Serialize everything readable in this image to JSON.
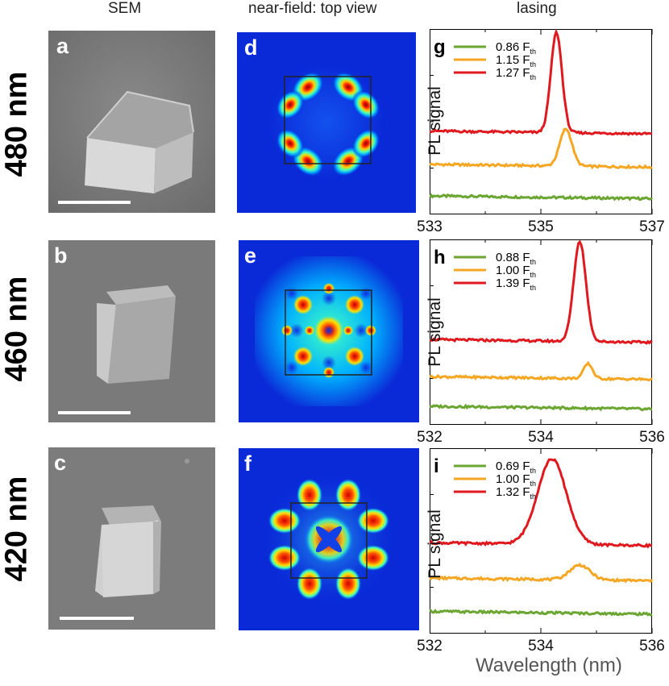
{
  "headers": {
    "sem": "SEM",
    "nearfield": "near-field: top view",
    "lasing": "lasing"
  },
  "rows": [
    {
      "size": "480 nm",
      "sem_label": "a",
      "nf_label": "d",
      "nf_pattern": "lobes8"
    },
    {
      "size": "460 nm",
      "sem_label": "b",
      "nf_label": "e",
      "nf_pattern": "grid"
    },
    {
      "size": "420 nm",
      "sem_label": "c",
      "nf_label": "f",
      "nf_pattern": "edges"
    }
  ],
  "chart_data": [
    {
      "type": "line",
      "panel_label": "g",
      "ylabel": "PL signal",
      "xlabel": "",
      "xlim": [
        533,
        537
      ],
      "xticks": [
        "533",
        "535",
        "537"
      ],
      "xminor": [
        534,
        536
      ],
      "legend_position": "top-left",
      "series": [
        {
          "name": "0.86 F",
          "sub": "th",
          "color": "#6aa631",
          "baseline": 0.1,
          "peak_x": 535.4,
          "peak_height": 0.0,
          "width": 0.1
        },
        {
          "name": "1.15 F",
          "sub": "th",
          "color": "#f5a623",
          "baseline": 0.27,
          "peak_x": 535.45,
          "peak_height": 0.2,
          "width": 0.11
        },
        {
          "name": "1.27 F",
          "sub": "th",
          "color": "#e0191e",
          "baseline": 0.45,
          "peak_x": 535.28,
          "peak_height": 0.54,
          "width": 0.1
        }
      ]
    },
    {
      "type": "line",
      "panel_label": "h",
      "ylabel": "PL signal",
      "xlabel": "",
      "xlim": [
        532,
        536
      ],
      "xticks": [
        "532",
        "534",
        "536"
      ],
      "xminor": [
        533,
        535
      ],
      "legend_position": "top-left",
      "series": [
        {
          "name": "0.88 F",
          "sub": "th",
          "color": "#6aa631",
          "baseline": 0.1,
          "peak_x": 534.8,
          "peak_height": 0.0,
          "width": 0.1
        },
        {
          "name": "1.00 F",
          "sub": "th",
          "color": "#f5a623",
          "baseline": 0.26,
          "peak_x": 534.85,
          "peak_height": 0.08,
          "width": 0.08
        },
        {
          "name": "1.39 F",
          "sub": "th",
          "color": "#e0191e",
          "baseline": 0.46,
          "peak_x": 534.7,
          "peak_height": 0.54,
          "width": 0.11
        }
      ]
    },
    {
      "type": "line",
      "panel_label": "i",
      "ylabel": "PL signal",
      "xlabel": "Wavelength (nm)",
      "xlim": [
        532,
        536
      ],
      "xticks": [
        "532",
        "534",
        "536"
      ],
      "xminor": [
        533,
        535
      ],
      "legend_position": "top-left",
      "series": [
        {
          "name": "0.69 F",
          "sub": "th",
          "color": "#6aa631",
          "baseline": 0.12,
          "peak_x": 534.6,
          "peak_height": 0.0,
          "width": 0.2
        },
        {
          "name": "1.00 F",
          "sub": "th",
          "color": "#f5a623",
          "baseline": 0.3,
          "peak_x": 534.7,
          "peak_height": 0.08,
          "width": 0.18
        },
        {
          "name": "1.32 F",
          "sub": "th",
          "color": "#e0191e",
          "baseline": 0.49,
          "peak_x": 534.2,
          "peak_height": 0.46,
          "width": 0.26
        }
      ]
    }
  ]
}
